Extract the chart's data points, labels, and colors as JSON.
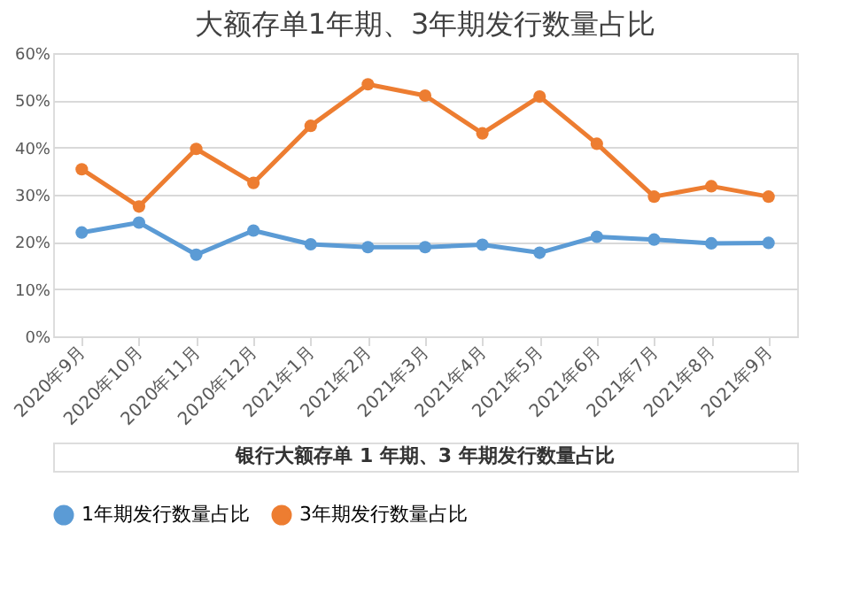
{
  "chart_data": {
    "type": "line",
    "title": "大额存单1年期、3年期发行数量占比",
    "categories": [
      "2020年9月",
      "2020年10月",
      "2020年11月",
      "2020年12月",
      "2021年1月",
      "2021年2月",
      "2021年3月",
      "2021年4月",
      "2021年5月",
      "2021年6月",
      "2021年7月",
      "2021年8月",
      "2021年9月"
    ],
    "series": [
      {
        "name": "1年期发行数量占比",
        "color": "#5b9bd5",
        "values": [
          22,
          24.1,
          17.3,
          22.4,
          19.5,
          18.9,
          18.9,
          19.4,
          17.7,
          21.1,
          20.5,
          19.7,
          19.8
        ]
      },
      {
        "name": "3年期发行数量占比",
        "color": "#ed7d31",
        "values": [
          35.4,
          27.5,
          39.7,
          32.5,
          44.6,
          53.4,
          51,
          43,
          50.8,
          40.8,
          29.6,
          31.8,
          29.6
        ]
      }
    ],
    "ylim": [
      0,
      60
    ],
    "yticks": [
      {
        "value": 0,
        "label": "0%"
      },
      {
        "value": 10,
        "label": "10%"
      },
      {
        "value": 20,
        "label": "20%"
      },
      {
        "value": 30,
        "label": "30%"
      },
      {
        "value": 40,
        "label": "40%"
      },
      {
        "value": 50,
        "label": "50%"
      },
      {
        "value": 60,
        "label": "60%"
      }
    ],
    "grid": "y",
    "legend": "bottom",
    "marker": "circle",
    "line_style": "solid",
    "annotations": [
      "银行大额存单 1 年期、3 年期发行数量占比"
    ]
  }
}
